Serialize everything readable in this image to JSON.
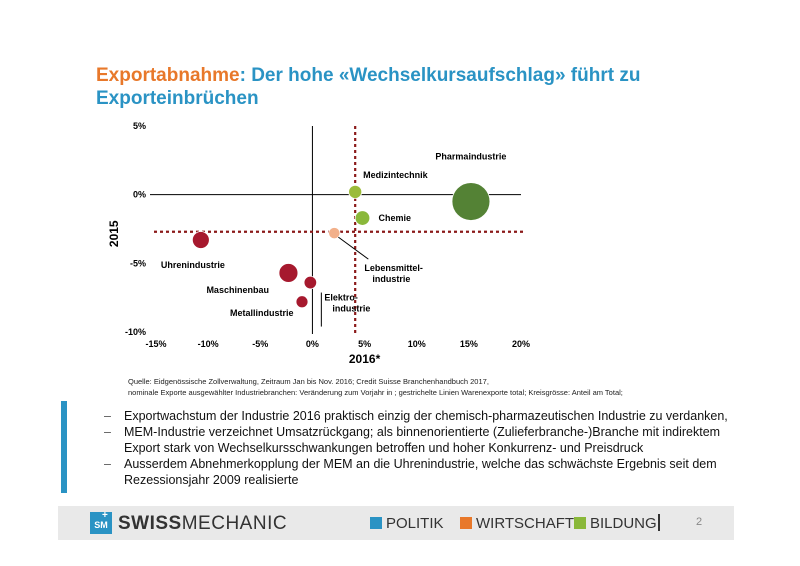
{
  "slide": {
    "title_accent": "Exportabnahme",
    "title_rest": ": Der hohe «Wechselkursaufschlag» führt zu Exporteinbrüchen",
    "source_line1": "Quelle: Eidgenössische Zollverwaltung, Zeitraum Jan bis Nov. 2016; Credit Suisse Branchenhandbuch 2017,",
    "source_line2": "nominale Exporte ausgewählter Industriebranchen: Veränderung zum Vorjahr in ; gestrichelte Linien Warenexporte total; Kreisgrösse: Anteil am Total;",
    "bullets": [
      "Exportwachstum der Industrie 2016 praktisch einzig der chemisch-pharmazeutischen Industrie zu verdanken,",
      "MEM-Industrie verzeichnet Umsatzrückgang; als  binnenorientierte (Zulieferbranche-)Branche mit indirektem Export stark von Wechselkursschwankungen betroffen und  hoher Konkurrenz- und Preisdruck",
      "Ausserdem  Abnehmerkopplung der MEM an die Uhrenindustrie, welche das schwächste Ergebnis seit dem Rezessionsjahr 2009 realisierte"
    ],
    "bullet_marker": "–"
  },
  "footer": {
    "logo_text": "SM",
    "logo_plus": "+",
    "brand_bold": "SWISS",
    "brand_light": "MECHANIC",
    "nav": [
      "POLITIK",
      "WIRTSCHAFT",
      "BILDUNG"
    ],
    "nav_colors": [
      "#2a93c4",
      "#e8782a",
      "#8ab83a"
    ],
    "page_number": "2"
  },
  "chart_data": {
    "type": "scatter",
    "xlabel": "2016*",
    "ylabel": "2015",
    "xlim": [
      -15,
      20
    ],
    "ylim": [
      -10,
      5
    ],
    "x_ticks": [
      -15,
      -10,
      -5,
      0,
      5,
      10,
      15,
      20
    ],
    "x_tick_labels": [
      "-15%",
      "-10%",
      "-5%",
      "0%",
      "5%",
      "10%",
      "15%",
      "20%"
    ],
    "y_ticks": [
      5,
      0,
      -5,
      -10
    ],
    "y_tick_labels": [
      "5%",
      "0%",
      "-5%",
      "-10%"
    ],
    "reference_x": 4.1,
    "reference_y": -2.7,
    "grid": false,
    "points": [
      {
        "name": "Pharmaindustrie",
        "x": 15.2,
        "y": -0.5,
        "size": 10,
        "color": "#548235"
      },
      {
        "name": "Medizintechnik",
        "x": 4.1,
        "y": 0.2,
        "size": 1.2,
        "color": "#9bbb3a"
      },
      {
        "name": "Chemie",
        "x": 4.8,
        "y": -1.7,
        "size": 1.5,
        "color": "#8ab83a"
      },
      {
        "name": "Lebensmittel-\nindustrie",
        "x": 2.1,
        "y": -2.8,
        "size": 0.9,
        "color": "#f2b08a"
      },
      {
        "name": "Uhrenindustrie",
        "x": -10.7,
        "y": -3.3,
        "size": 2.0,
        "color": "#a6192e"
      },
      {
        "name": "Maschinenbau",
        "x": -2.3,
        "y": -5.7,
        "size": 2.5,
        "color": "#a6192e"
      },
      {
        "name": "Elektro-\nindustrie",
        "x": -0.2,
        "y": -6.4,
        "size": 1.1,
        "color": "#a6192e"
      },
      {
        "name": "Metallindustrie",
        "x": -1.0,
        "y": -7.8,
        "size": 1.0,
        "color": "#a6192e"
      }
    ]
  }
}
